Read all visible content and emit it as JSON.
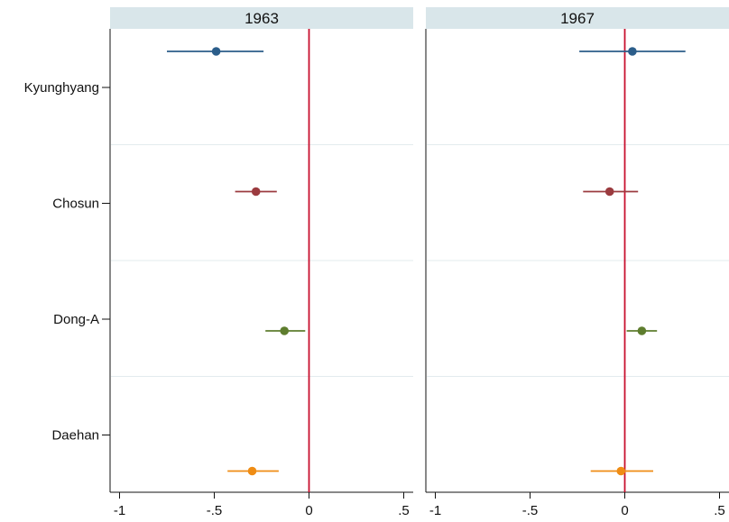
{
  "chart_data": {
    "type": "scatter",
    "subtype": "coefficient-plot-with-confidence-intervals",
    "panels": [
      {
        "title": "1963",
        "series": [
          {
            "category": "Kyunghyang",
            "estimate": -0.49,
            "ci": [
              -0.75,
              -0.24
            ],
            "color": "#2b5d8a"
          },
          {
            "category": "Chosun",
            "estimate": -0.28,
            "ci": [
              -0.39,
              -0.17
            ],
            "color": "#9b3b3f"
          },
          {
            "category": "Dong-A",
            "estimate": -0.13,
            "ci": [
              -0.23,
              -0.02
            ],
            "color": "#5e7d2e"
          },
          {
            "category": "Daehan",
            "estimate": -0.3,
            "ci": [
              -0.43,
              -0.16
            ],
            "color": "#ef8c14"
          }
        ]
      },
      {
        "title": "1967",
        "series": [
          {
            "category": "Kyunghyang",
            "estimate": 0.04,
            "ci": [
              -0.24,
              0.32
            ],
            "color": "#2b5d8a"
          },
          {
            "category": "Chosun",
            "estimate": -0.08,
            "ci": [
              -0.22,
              0.07
            ],
            "color": "#9b3b3f"
          },
          {
            "category": "Dong-A",
            "estimate": 0.09,
            "ci": [
              0.01,
              0.17
            ],
            "color": "#5e7d2e"
          },
          {
            "category": "Daehan",
            "estimate": -0.02,
            "ci": [
              -0.18,
              0.15
            ],
            "color": "#ef8c14"
          }
        ]
      }
    ],
    "categories": [
      "Kyunghyang",
      "Chosun",
      "Dong-A",
      "Daehan"
    ],
    "x_ticks": [
      -1,
      -0.5,
      0,
      0.5
    ],
    "x_tick_labels": [
      "-1",
      "-.5",
      "0",
      ".5"
    ],
    "xlim": [
      -1.05,
      0.55
    ],
    "reference_line": {
      "x": 0,
      "color": "#c8102e"
    },
    "grid": "horizontal-separators",
    "strip_color": "#d9e6ea"
  }
}
